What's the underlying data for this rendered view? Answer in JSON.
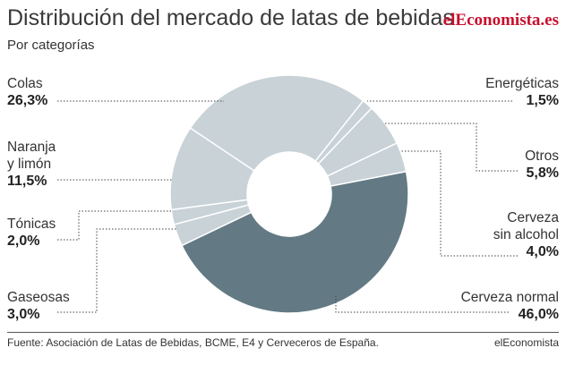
{
  "header": {
    "title": "Distribución del mercado de latas de bebidas",
    "subtitle": "Por categorías",
    "brand": "elEconomista.es"
  },
  "footer": {
    "source": "Fuente: Asociación de Latas de Bebidas, BCME, E4 y Cerveceros de España.",
    "credit": "elEconomista"
  },
  "colors": {
    "light": "#c8d2d7",
    "dark": "#637a84",
    "leader": "#444444"
  },
  "chart_data": {
    "type": "pie",
    "variant": "donut",
    "title": "Distribución del mercado de latas de bebidas",
    "subtitle": "Por categorías",
    "unit": "%",
    "slices": [
      {
        "label": "Cerveza normal",
        "value": 46.0,
        "display": "46,0%"
      },
      {
        "label": "Gaseosas",
        "value": 3.0,
        "display": "3,0%"
      },
      {
        "label": "Tónicas",
        "value": 2.0,
        "display": "2,0%"
      },
      {
        "label": "Naranja y limón",
        "value": 11.5,
        "display": "11,5%"
      },
      {
        "label": "Colas",
        "value": 26.3,
        "display": "26,3%"
      },
      {
        "label": "Energéticas",
        "value": 1.5,
        "display": "1,5%"
      },
      {
        "label": "Otros",
        "value": 5.8,
        "display": "5,8%"
      },
      {
        "label": "Cerveza sin alcohol",
        "value": 4.0,
        "display": "4,0%"
      }
    ]
  }
}
